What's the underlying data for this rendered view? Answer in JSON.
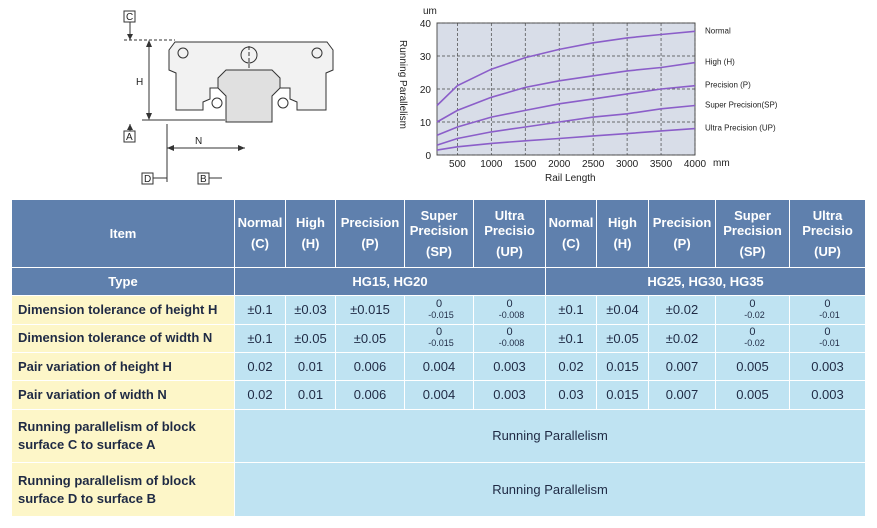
{
  "diagram": {
    "label_c": "C",
    "label_h": "H",
    "label_a": "A",
    "label_n": "N",
    "label_d": "D",
    "label_b": "B"
  },
  "chart_data": {
    "type": "line",
    "title": "",
    "xlabel": "Rail Length",
    "ylabel": "Running Parallelism",
    "y_unit": "um",
    "x_unit": "mm",
    "xlim": [
      200,
      4000
    ],
    "ylim": [
      0,
      40
    ],
    "x_ticks": [
      "500",
      "1000",
      "1500",
      "2000",
      "2500",
      "3000",
      "3500",
      "4000"
    ],
    "y_ticks": [
      "0",
      "10",
      "20",
      "30",
      "40"
    ],
    "grid": true,
    "series": [
      {
        "name": "Normal",
        "x": [
          200,
          500,
          1000,
          1500,
          2000,
          2500,
          3000,
          3500,
          4000
        ],
        "y": [
          15,
          21,
          26,
          29.5,
          32,
          34,
          35.5,
          36.5,
          37.5
        ]
      },
      {
        "name": "High (H)",
        "x": [
          200,
          500,
          1000,
          1500,
          2000,
          2500,
          3000,
          3500,
          4000
        ],
        "y": [
          10,
          13.5,
          17.5,
          20.5,
          22.5,
          24,
          25.5,
          26.5,
          28
        ]
      },
      {
        "name": "Precision (P)",
        "x": [
          200,
          500,
          1000,
          1500,
          2000,
          2500,
          3000,
          3500,
          4000
        ],
        "y": [
          6,
          8.5,
          11.5,
          13.5,
          15.5,
          17,
          18.5,
          20,
          21
        ]
      },
      {
        "name": "Super Precision(SP)",
        "x": [
          200,
          500,
          1000,
          1500,
          2000,
          2500,
          3000,
          3500,
          4000
        ],
        "y": [
          3,
          5,
          7,
          8.5,
          10,
          11.5,
          12.5,
          14,
          15
        ]
      },
      {
        "name": "Ultra Precision (UP)",
        "x": [
          200,
          500,
          1000,
          1500,
          2000,
          2500,
          3000,
          3500,
          4000
        ],
        "y": [
          1.5,
          2.5,
          3.5,
          4.3,
          5,
          5.8,
          6.5,
          7.3,
          8
        ]
      }
    ]
  },
  "table": {
    "item_header": "Item",
    "grade_headers": [
      {
        "name": "Normal",
        "code": "(C)"
      },
      {
        "name": "High",
        "code": "(H)"
      },
      {
        "name": "Precision",
        "code": "(P)"
      },
      {
        "name": "Super Precision",
        "code": "(SP)"
      },
      {
        "name": "Ultra Precisio",
        "code": "(UP)"
      },
      {
        "name": "Normal",
        "code": "(C)"
      },
      {
        "name": "High",
        "code": "(H)"
      },
      {
        "name": "Precision",
        "code": "(P)"
      },
      {
        "name": "Super Precision",
        "code": "(SP)"
      },
      {
        "name": "Ultra Precisio",
        "code": "(UP)"
      }
    ],
    "type_label": "Type",
    "type_group1": "HG15, HG20",
    "type_group2": "HG25, HG30, HG35",
    "rows": [
      {
        "label": "Dimension tolerance of height H",
        "values": [
          "±0.1",
          "±0.03",
          "±0.015",
          "0|-0.015",
          "0|-0.008",
          "±0.1",
          "±0.04",
          "±0.02",
          "0|-0.02",
          "0|-0.01"
        ]
      },
      {
        "label": "Dimension tolerance of width N",
        "values": [
          "±0.1",
          "±0.05",
          "±0.05",
          "0|-0.015",
          "0|-0.008",
          "±0.1",
          "±0.05",
          "±0.02",
          "0|-0.02",
          "0|-0.01"
        ]
      },
      {
        "label": "Pair variation of height H",
        "values": [
          "0.02",
          "0.01",
          "0.006",
          "0.004",
          "0.003",
          "0.02",
          "0.015",
          "0.007",
          "0.005",
          "0.003"
        ]
      },
      {
        "label": "Pair variation of width N",
        "values": [
          "0.02",
          "0.01",
          "0.006",
          "0.004",
          "0.003",
          "0.03",
          "0.015",
          "0.007",
          "0.005",
          "0.003"
        ]
      }
    ],
    "parallel_rows": [
      {
        "label_line1": "Running parallelism of block",
        "label_line2": "surface C to surface A",
        "value": "Running Parallelism"
      },
      {
        "label_line1": "Running parallelism of block",
        "label_line2": "surface D to surface B",
        "value": "Running Parallelism"
      }
    ]
  }
}
